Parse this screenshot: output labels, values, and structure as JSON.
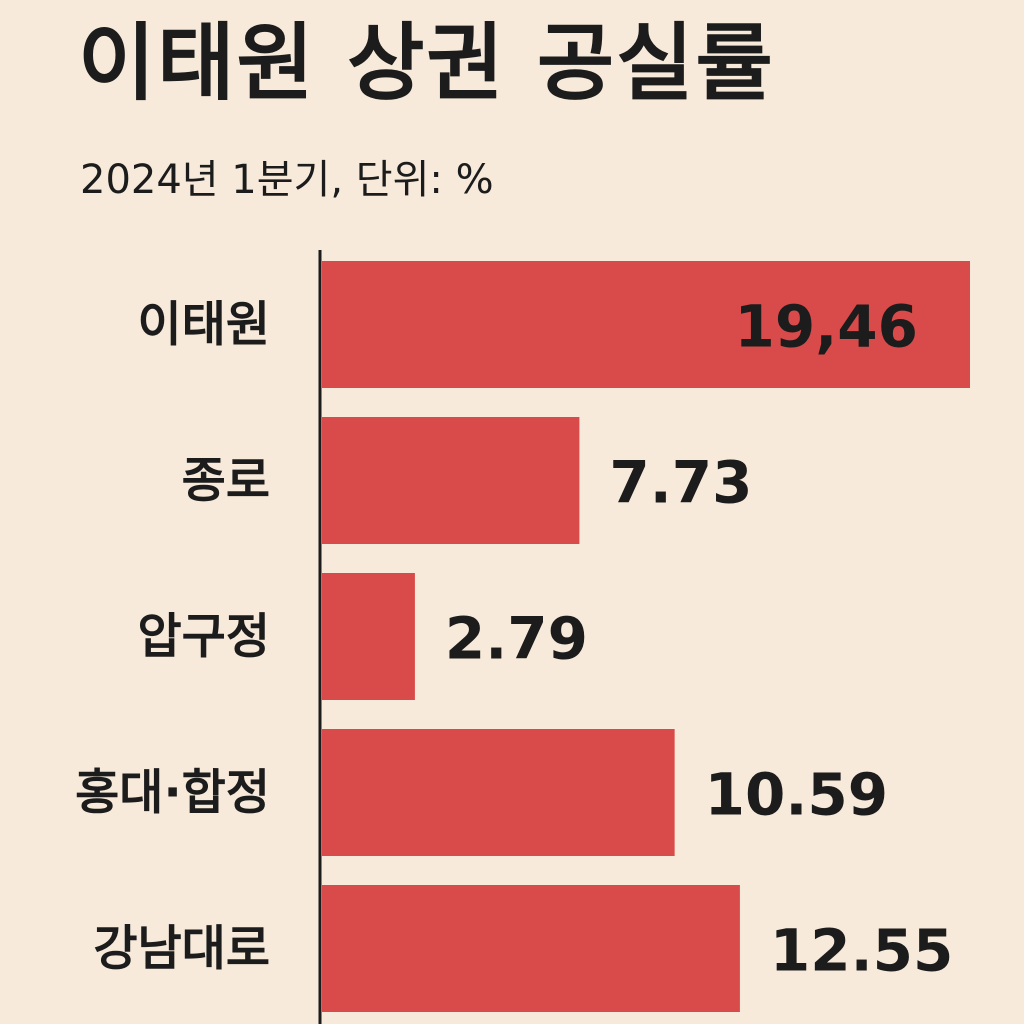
{
  "header": {
    "title": "이태원 상권 공실률",
    "subtitle": "2024년 1분기, 단위: %"
  },
  "colors": {
    "background": "#f7eadb",
    "bar": "#d94a4a",
    "axis": "#1c1c1c",
    "text": "#1c1c1c"
  },
  "chart_data": {
    "type": "bar",
    "orientation": "horizontal",
    "title": "이태원 상권 공실률",
    "subtitle": "2024년 1분기, 단위: %",
    "categories": [
      "이태원",
      "종로",
      "압구정",
      "홍대·합정",
      "강남대로"
    ],
    "values": [
      19.46,
      7.73,
      2.79,
      10.59,
      12.55
    ],
    "value_labels": [
      "19,46",
      "7.73",
      "2.79",
      "10.59",
      "12.55"
    ],
    "xlim": [
      0,
      19.46
    ],
    "grid": false,
    "legend": "none"
  }
}
